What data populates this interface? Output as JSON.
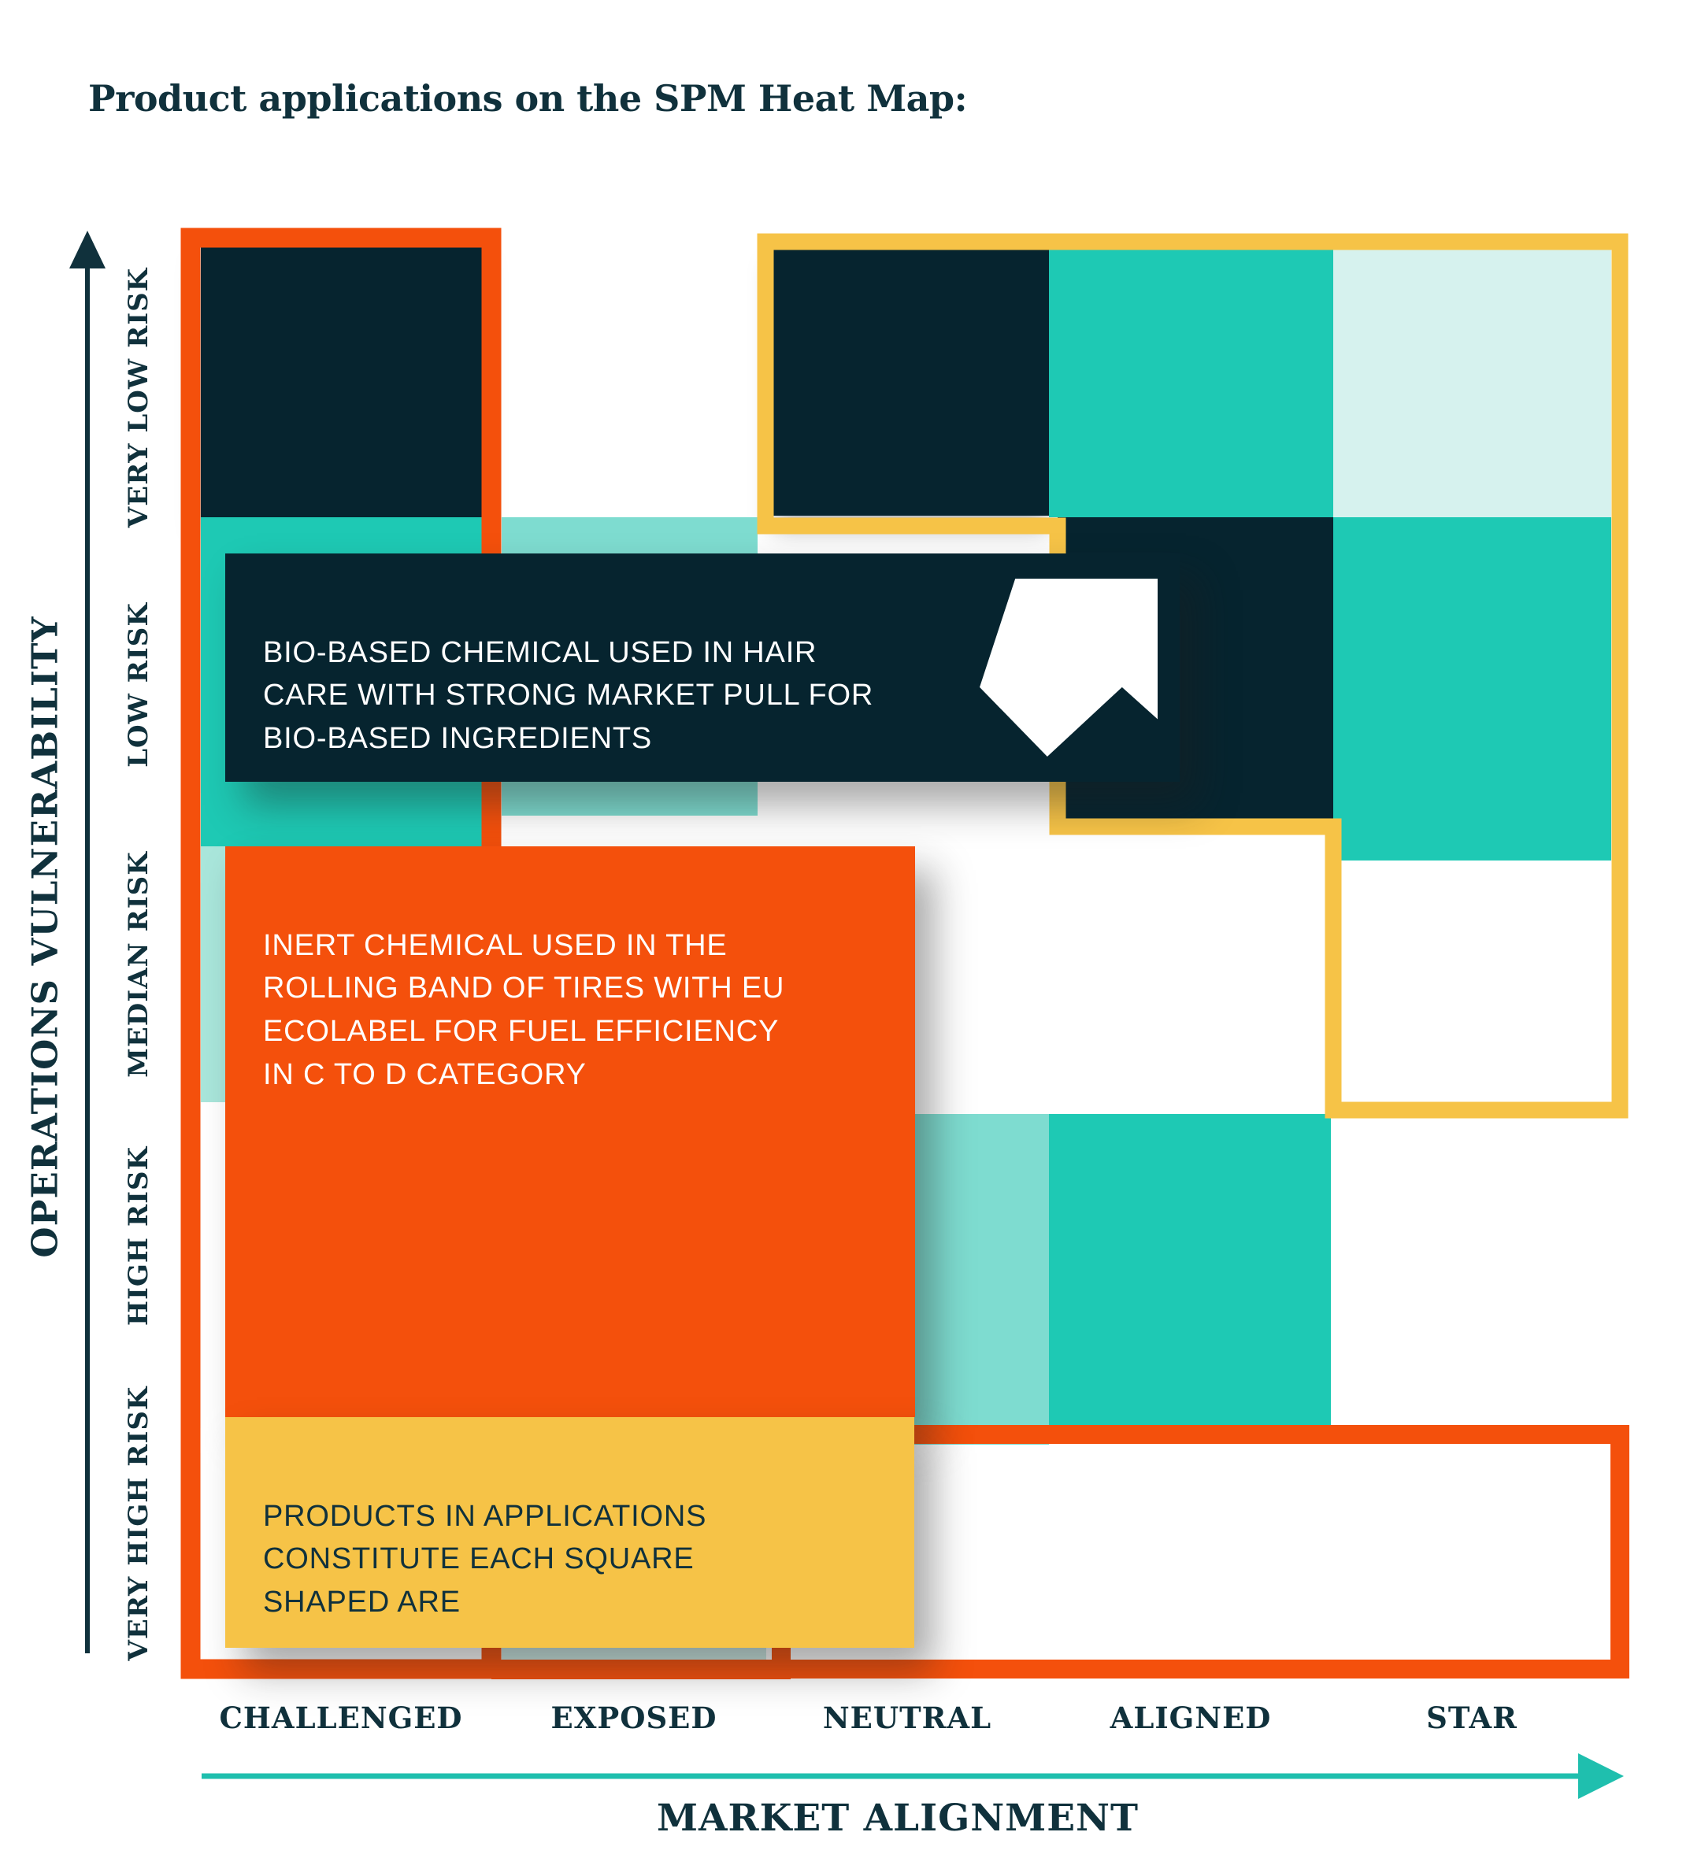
{
  "title": "Product applications on the SPM Heat Map:",
  "y_axis": {
    "title": "OPERATIONS VULNERABILITY",
    "labels": [
      "VERY LOW RISK",
      "LOW RISK",
      "MEDIAN RISK",
      "HIGH RISK",
      "VERY HIGH RISK"
    ]
  },
  "x_axis": {
    "title": "MARKET ALIGNMENT",
    "labels": [
      "CHALLENGED",
      "EXPOSED",
      "NEUTRAL",
      "ALIGNED",
      "STAR"
    ]
  },
  "callouts": {
    "bio": {
      "lines": [
        "BIO-BASED CHEMICAL USED IN HAIR",
        "CARE WITH STRONG MARKET PULL FOR",
        "BIO-BASED INGREDIENTS"
      ],
      "background": "#06242F",
      "text_color": "#FFFFFF",
      "icon": "northeast-arrow"
    },
    "inert": {
      "lines": [
        "INERT CHEMICAL USED IN THE",
        "ROLLING BAND OF TIRES WITH EU",
        "ECOLABEL FOR FUEL EFFICIENCY",
        "IN C TO D CATEGORY"
      ],
      "background": "#F4500C",
      "text_color": "#FFFFFF"
    },
    "products": {
      "lines": [
        "PRODUCTS IN APPLICATIONS",
        "CONSTITUTE EACH SQUARE",
        "SHAPED ARE"
      ],
      "background": "#F6C347",
      "text_color": "#10313C"
    }
  },
  "colors": {
    "navy": "#06242F",
    "ink": "#10313C",
    "teal": "#1EC9B4",
    "pale": "#7EDCD0",
    "lighter": "#A9E6DB",
    "palest": "#D6F2EE",
    "wash": "#CBE8E3",
    "orange": "#F4500C",
    "yellow": "#F6C347",
    "axis_teal": "#1FBFAE",
    "white": "#FFFFFF"
  },
  "chart_data": {
    "type": "heatmap",
    "title": "Product applications on the SPM Heat Map:",
    "xlabel": "MARKET ALIGNMENT",
    "ylabel": "OPERATIONS VULNERABILITY",
    "x_categories": [
      "CHALLENGED",
      "EXPOSED",
      "NEUTRAL",
      "ALIGNED",
      "STAR"
    ],
    "y_categories_top_to_bottom": [
      "VERY LOW RISK",
      "LOW RISK",
      "MEDIAN RISK",
      "HIGH RISK",
      "VERY HIGH RISK"
    ],
    "cell_shades_top_to_bottom": [
      [
        "navy",
        "white",
        "navy",
        "teal",
        "palest"
      ],
      [
        "teal",
        "pale",
        "white",
        "navy",
        "teal"
      ],
      [
        "lighter",
        "white",
        "white",
        "white",
        "white"
      ],
      [
        "white",
        "wash",
        "pale",
        "teal",
        "white"
      ],
      [
        "white",
        "wash",
        "white",
        "white",
        "white"
      ]
    ],
    "grid": false,
    "legend": false,
    "annotations": [
      {
        "name": "challenged-column-highlight",
        "style": "orange-frame",
        "covers": "CHALLENGED column, all rows"
      },
      {
        "name": "top-right-region-highlight",
        "style": "yellow-frame",
        "covers": "NEUTRAL/ALIGNED/STAR very-low-risk row, ALIGNED/STAR low-risk row, STAR median-risk row"
      },
      {
        "name": "bottom-region-highlight",
        "style": "orange-frame",
        "covers": "NEUTRAL to STAR, very-high-risk row"
      },
      {
        "name": "bio-callout",
        "text": "BIO-BASED CHEMICAL USED IN HAIR CARE WITH STRONG MARKET PULL FOR BIO-BASED INGREDIENTS"
      },
      {
        "name": "inert-callout",
        "text": "INERT CHEMICAL USED IN THE ROLLING BAND OF TIRES WITH EU ECOLABEL FOR FUEL EFFICIENCY IN C TO D CATEGORY"
      },
      {
        "name": "products-callout",
        "text": "PRODUCTS IN APPLICATIONS CONSTITUTE EACH SQUARE SHAPED ARE"
      }
    ]
  }
}
